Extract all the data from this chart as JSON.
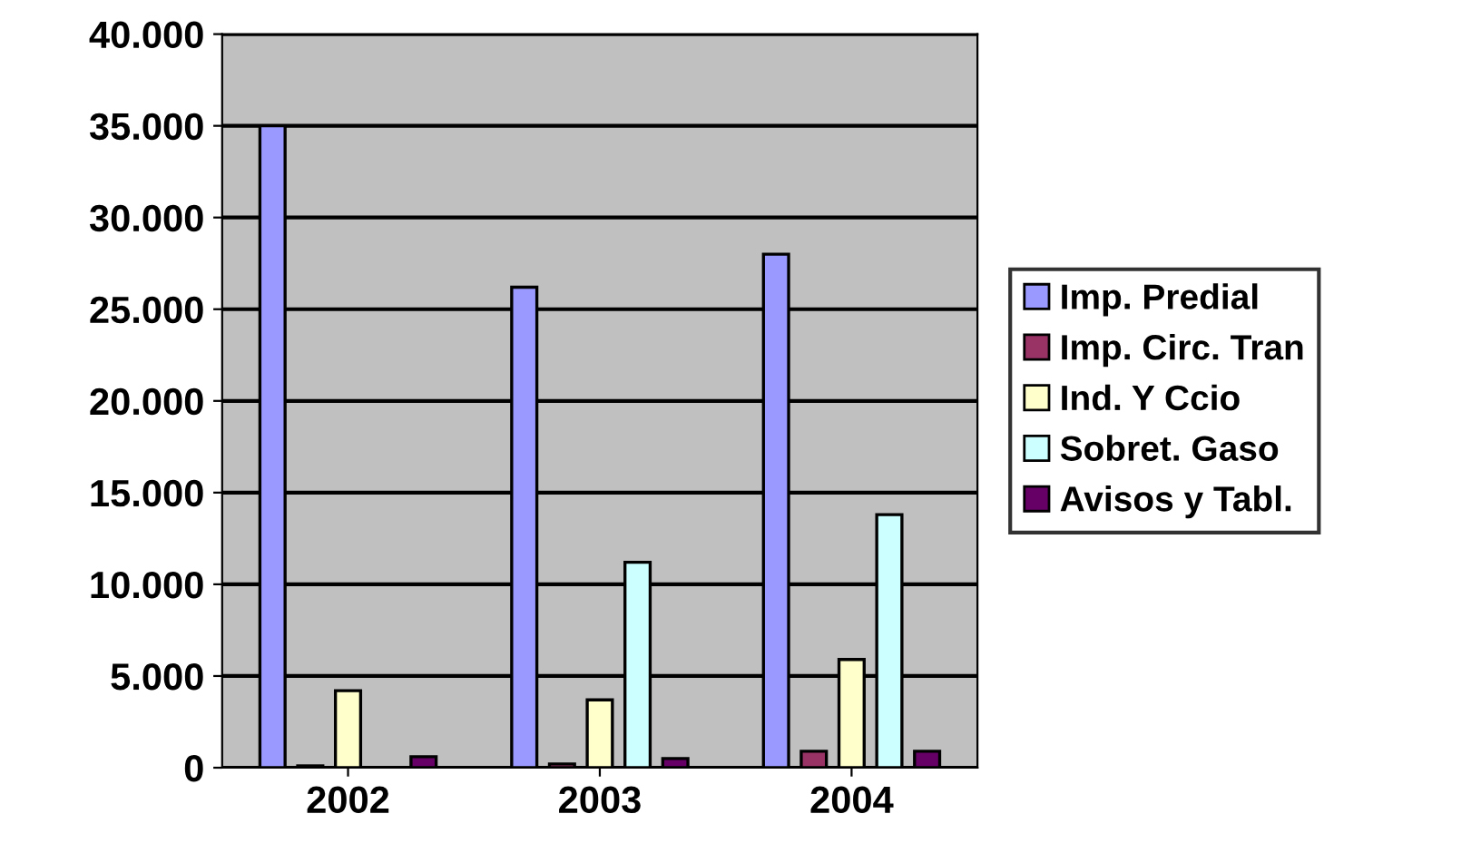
{
  "chart_data": {
    "type": "bar",
    "categories": [
      "2002",
      "2003",
      "2004"
    ],
    "series": [
      {
        "name": "Imp. Predial",
        "color": "#9999ff",
        "values": [
          35000,
          26200,
          28000
        ]
      },
      {
        "name": "Imp. Circ. Tran",
        "color": "#993366",
        "values": [
          100,
          200,
          900
        ]
      },
      {
        "name": "Ind. Y Ccio",
        "color": "#ffffcc",
        "values": [
          4200,
          3700,
          5900
        ]
      },
      {
        "name": "Sobret. Gaso",
        "color": "#ccffff",
        "values": [
          null,
          11200,
          13800
        ]
      },
      {
        "name": "Avisos y Tabl.",
        "color": "#660066",
        "values": [
          600,
          500,
          900
        ]
      }
    ],
    "ylim": [
      0,
      40000
    ],
    "yticks": [
      {
        "value": 0,
        "label": "0"
      },
      {
        "value": 5000,
        "label": "5.000"
      },
      {
        "value": 10000,
        "label": "10.000"
      },
      {
        "value": 15000,
        "label": "15.000"
      },
      {
        "value": 20000,
        "label": "20.000"
      },
      {
        "value": 25000,
        "label": "25.000"
      },
      {
        "value": 30000,
        "label": "30.000"
      },
      {
        "value": 35000,
        "label": "35.000"
      },
      {
        "value": 40000,
        "label": "40.000"
      }
    ],
    "grid": "y",
    "legend": "right"
  }
}
